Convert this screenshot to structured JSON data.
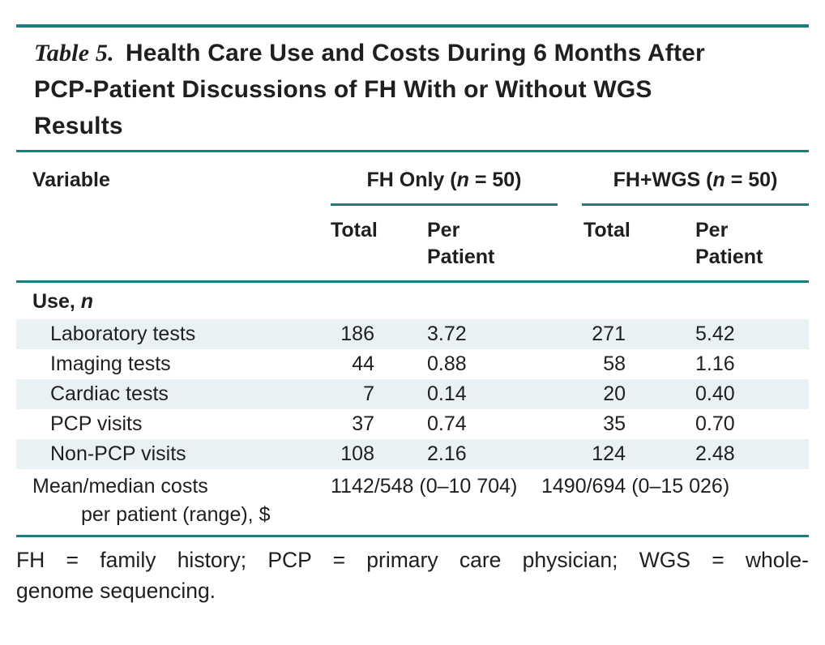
{
  "colors": {
    "accent_teal": "#1a7c7d",
    "row_shade": "#e9f1f5",
    "text_color": "#1f1f1f"
  },
  "title": {
    "label": "Table 5.",
    "line1": "Health Care Use and Costs During 6 Months After",
    "line2": "PCP-Patient Discussions of FH With or Without WGS",
    "line3": "Results"
  },
  "header": {
    "variable_label": "Variable",
    "groups": [
      {
        "pre": "FH Only (",
        "n": "n",
        "post": " = 50)"
      },
      {
        "pre": "FH+WGS (",
        "n": "n",
        "post": " = 50)"
      }
    ],
    "subcolumns": {
      "fh_total": "Total",
      "fh_per_patient": "Per Patient",
      "wgs_total": "Total",
      "wgs_per_patient": "Per Patient"
    }
  },
  "section_header": {
    "pre": "Use, ",
    "n": "n"
  },
  "rows": [
    {
      "label": "Laboratory tests",
      "fh_total": "186",
      "fh_per_patient": "3.72",
      "wgs_total": "271",
      "wgs_per_patient": "5.42"
    },
    {
      "label": "Imaging tests",
      "fh_total": "44",
      "fh_per_patient": "0.88",
      "wgs_total": "58",
      "wgs_per_patient": "1.16"
    },
    {
      "label": "Cardiac tests",
      "fh_total": "7",
      "fh_per_patient": "0.14",
      "wgs_total": "20",
      "wgs_per_patient": "0.40"
    },
    {
      "label": "PCP visits",
      "fh_total": "37",
      "fh_per_patient": "0.74",
      "wgs_total": "35",
      "wgs_per_patient": "0.70"
    },
    {
      "label": "Non-PCP visits",
      "fh_total": "108",
      "fh_per_patient": "2.16",
      "wgs_total": "124",
      "wgs_per_patient": "2.48"
    }
  ],
  "costs_row": {
    "label_line1": "Mean/median costs",
    "label_line2": "per patient (range), $",
    "fh_only_value": "1142/548 (0–10 704)",
    "fh_wgs_value": "1490/694 (0–15 026)"
  },
  "footnote": {
    "line1": "FH = family history; PCP = primary care physician; WGS = whole-",
    "line2": "genome sequencing."
  }
}
